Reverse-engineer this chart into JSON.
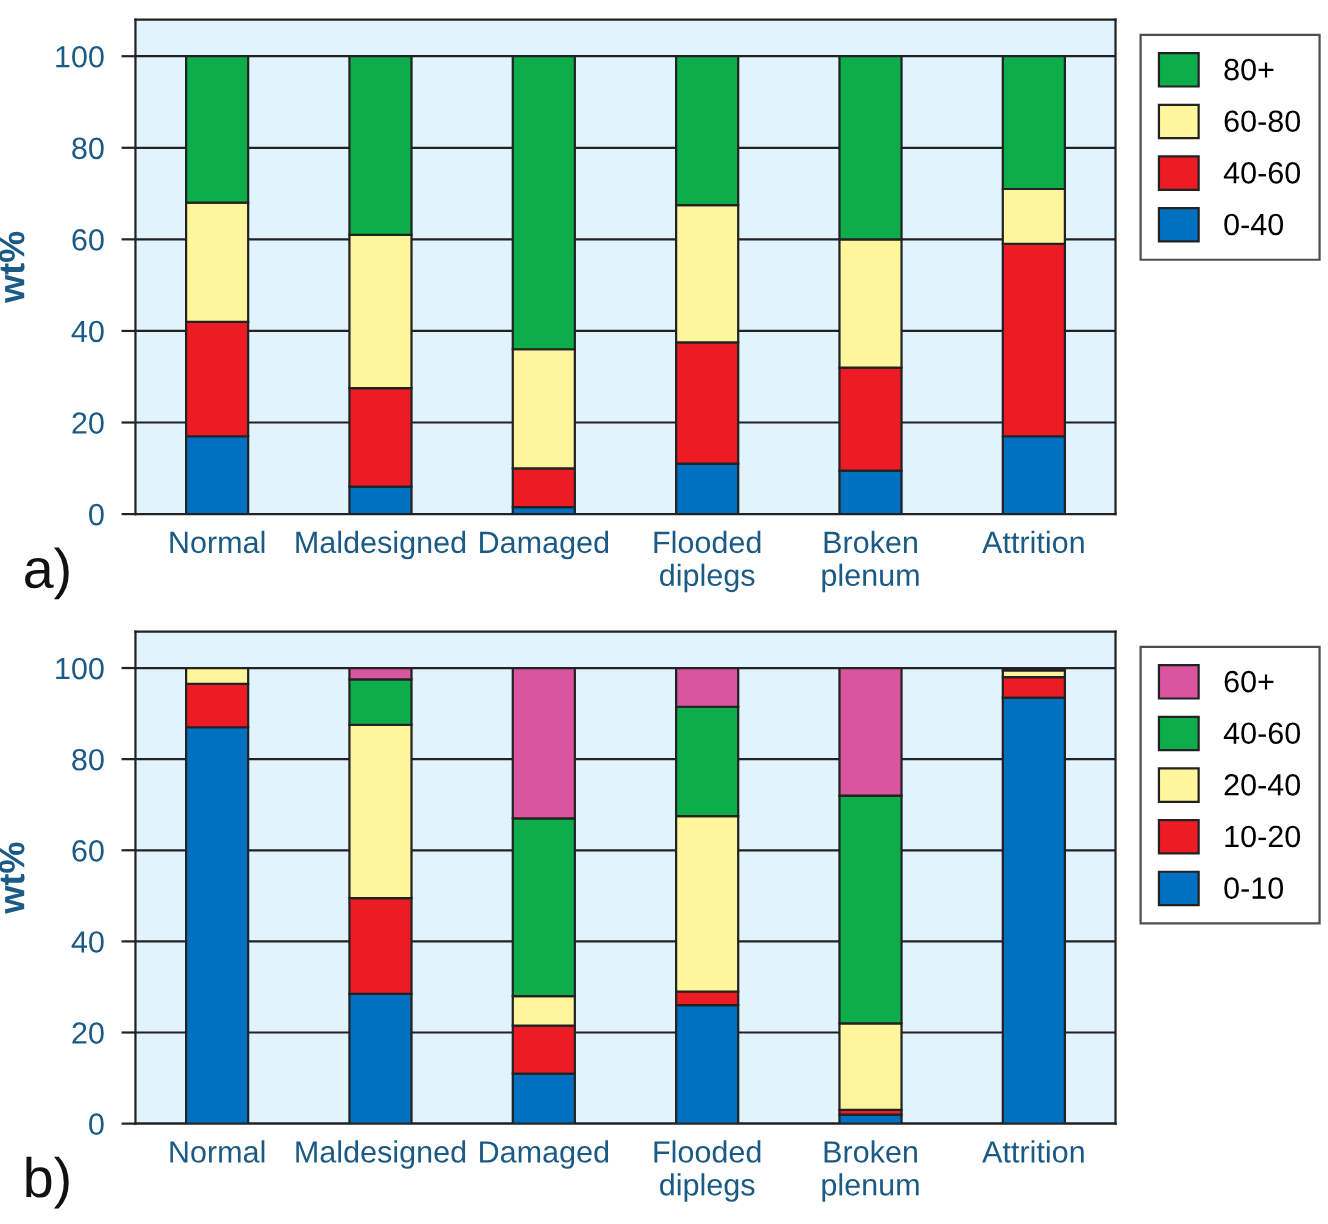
{
  "chart_data": [
    {
      "type": "bar",
      "stacked": true,
      "ylabel": "wt%",
      "categories": [
        "Normal",
        "Maldesigned",
        "Damaged",
        "Flooded\ndiplegs",
        "Broken\nplenum",
        "Attrition"
      ],
      "ylim": [
        0,
        108
      ],
      "yticks": [
        0,
        20,
        40,
        60,
        80,
        100
      ],
      "grid": "y",
      "legend": "top right",
      "annotations": [
        "a)"
      ],
      "series": [
        {
          "name": "0-40",
          "color": "#0070c0",
          "values": [
            17,
            6,
            1.5,
            11,
            9.5,
            17
          ]
        },
        {
          "name": "40-60",
          "color": "#ed1c24",
          "values": [
            25,
            21.5,
            8.5,
            26.5,
            22.5,
            42
          ]
        },
        {
          "name": "60-80",
          "color": "#fff59d",
          "values": [
            26,
            33.5,
            26,
            30,
            28,
            12
          ]
        },
        {
          "name": "80+",
          "color": "#0cad4a",
          "values": [
            32,
            39,
            64,
            32.5,
            40,
            29
          ]
        }
      ]
    },
    {
      "type": "bar",
      "stacked": true,
      "ylabel": "wt%",
      "categories": [
        "Normal",
        "Maldesigned",
        "Damaged",
        "Flooded\ndiplegs",
        "Broken\nplenum",
        "Attrition"
      ],
      "ylim": [
        0,
        108
      ],
      "yticks": [
        0,
        20,
        40,
        60,
        80,
        100
      ],
      "grid": "y",
      "legend": "top right",
      "annotations": [
        "b)"
      ],
      "series": [
        {
          "name": "0-10",
          "color": "#0070c0",
          "values": [
            87,
            28.5,
            11,
            26,
            2,
            93.5
          ]
        },
        {
          "name": "10-20",
          "color": "#ed1c24",
          "values": [
            9.5,
            21,
            10.5,
            3,
            1,
            4.5
          ]
        },
        {
          "name": "20-40",
          "color": "#fff59d",
          "values": [
            3.5,
            38,
            6.5,
            38.5,
            19,
            1.5
          ]
        },
        {
          "name": "40-60",
          "color": "#0cad4a",
          "values": [
            0,
            10,
            39,
            24,
            50,
            0
          ]
        },
        {
          "name": "60+",
          "color": "#d9559f",
          "values": [
            0,
            2.5,
            33,
            8.5,
            28,
            0.5
          ]
        }
      ]
    }
  ]
}
